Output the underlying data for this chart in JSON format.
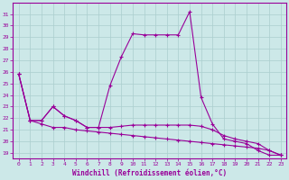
{
  "xlabel": "Windchill (Refroidissement éolien,°C)",
  "hours": [
    0,
    1,
    2,
    3,
    4,
    5,
    6,
    7,
    8,
    9,
    10,
    11,
    12,
    13,
    14,
    15,
    16,
    17,
    18,
    19,
    20,
    21,
    22,
    23
  ],
  "line_upper": [
    25.8,
    21.8,
    21.8,
    23.0,
    22.2,
    21.8,
    21.2,
    21.2,
    24.8,
    27.3,
    29.3,
    29.2,
    29.2,
    29.2,
    29.2,
    31.2,
    23.8,
    21.5,
    20.2,
    20.0,
    19.8,
    19.2,
    18.8,
    18.8
  ],
  "line_middle": [
    25.8,
    21.8,
    21.8,
    23.0,
    22.2,
    21.8,
    21.2,
    21.2,
    21.2,
    21.3,
    21.4,
    21.4,
    21.4,
    21.4,
    21.4,
    21.4,
    21.3,
    21.0,
    20.5,
    20.2,
    20.0,
    19.8,
    19.2,
    18.8
  ],
  "line_lower": [
    25.8,
    21.8,
    21.5,
    21.2,
    21.2,
    21.0,
    20.9,
    20.8,
    20.7,
    20.6,
    20.5,
    20.4,
    20.3,
    20.2,
    20.1,
    20.0,
    19.9,
    19.8,
    19.7,
    19.6,
    19.5,
    19.4,
    19.2,
    18.8
  ],
  "line_color": "#990099",
  "bg_color": "#cce8e8",
  "grid_color": "#aacece",
  "ylim_min": 18.5,
  "ylim_max": 32.0,
  "yticks": [
    19,
    20,
    21,
    22,
    23,
    24,
    25,
    26,
    27,
    28,
    29,
    30,
    31
  ],
  "xlim_min": -0.5,
  "xlim_max": 23.5
}
